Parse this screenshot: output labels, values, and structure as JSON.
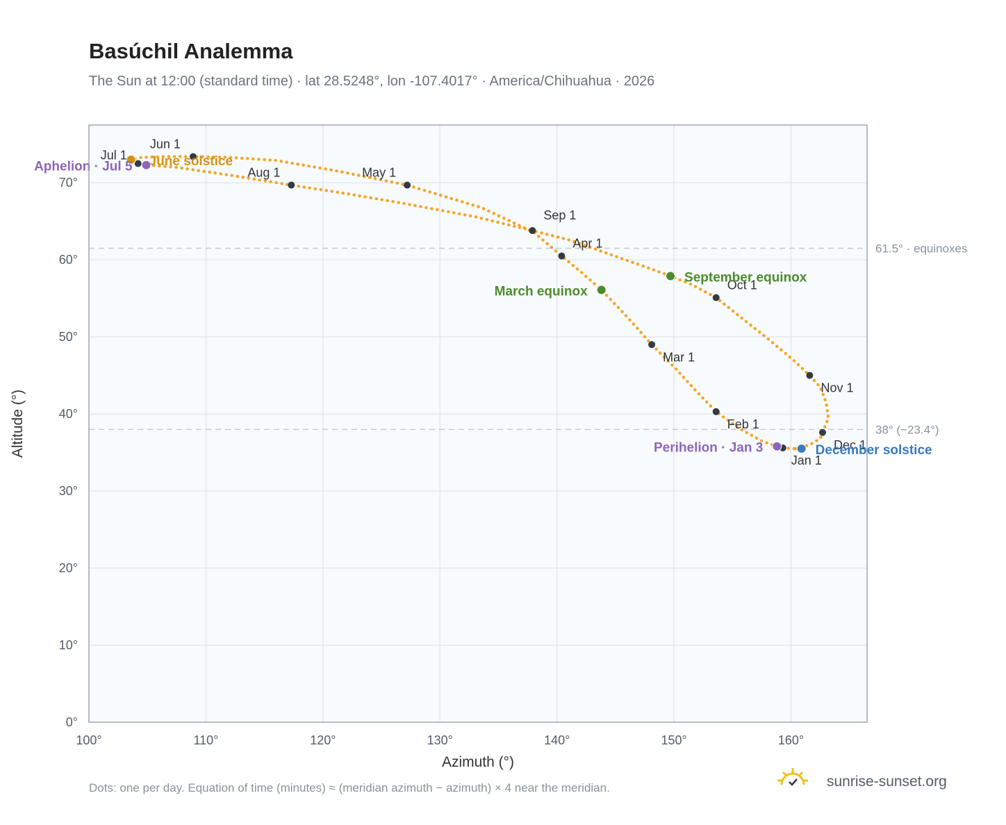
{
  "title": "Basúchil Analemma",
  "subtitle": "The Sun at 12:00 (standard time) · lat 28.5248°, lon -107.4017° · America/Chihuahua · 2026",
  "footnote": "Dots: one per day. Equation of time (minutes) ≈ (meridian azimuth − azimuth) × 4 near the meridian.",
  "brand": "sunrise-sunset.org",
  "colors": {
    "curve": "#f4a52a",
    "month_marker": "#333a44",
    "equinox": "#4e8a2e",
    "solstice_june": "#d39311",
    "solstice_december": "#3a7abf",
    "apsis": "#8c66b8",
    "plot_bg": "#f8fbfe",
    "grid": "#e3e8ee",
    "frame": "#9aa6b4",
    "ref_line": "#c4cad2",
    "logo": "#f0c020"
  },
  "chart_data": {
    "type": "scatter",
    "xlabel": "Azimuth (°)",
    "ylabel": "Altitude (°)",
    "xlim": [
      100,
      166.5
    ],
    "ylim": [
      0,
      77.5
    ],
    "x_ticks": [
      {
        "value": 100,
        "label": "100°"
      },
      {
        "value": 110,
        "label": "110°"
      },
      {
        "value": 120,
        "label": "120°"
      },
      {
        "value": 130,
        "label": "130°"
      },
      {
        "value": 140,
        "label": "140°"
      },
      {
        "value": 150,
        "label": "150°"
      },
      {
        "value": 160,
        "label": "160°"
      }
    ],
    "y_ticks": [
      {
        "value": 0,
        "label": "0°"
      },
      {
        "value": 10,
        "label": "10°"
      },
      {
        "value": 20,
        "label": "20°"
      },
      {
        "value": 30,
        "label": "30°"
      },
      {
        "value": 40,
        "label": "40°"
      },
      {
        "value": 50,
        "label": "50°"
      },
      {
        "value": 60,
        "label": "60°"
      },
      {
        "value": 70,
        "label": "70°"
      }
    ],
    "grid": true,
    "reference_lines": [
      {
        "y": 61.5,
        "label": "61.5° · equinoxes"
      },
      {
        "y": 38,
        "label": "38° (−23.4°)"
      }
    ],
    "daily_path": [
      {
        "x": 160.4,
        "y": 35.5
      },
      {
        "x": 161.6,
        "y": 36.0
      },
      {
        "x": 162.5,
        "y": 36.8
      },
      {
        "x": 162.7,
        "y": 37.6
      },
      {
        "x": 163.2,
        "y": 39.5
      },
      {
        "x": 163.0,
        "y": 41.5
      },
      {
        "x": 162.5,
        "y": 43.5
      },
      {
        "x": 161.6,
        "y": 45.0
      },
      {
        "x": 160.2,
        "y": 47.0
      },
      {
        "x": 158.0,
        "y": 49.8
      },
      {
        "x": 155.5,
        "y": 52.8
      },
      {
        "x": 153.6,
        "y": 55.1
      },
      {
        "x": 151.5,
        "y": 56.8
      },
      {
        "x": 149.7,
        "y": 57.9
      },
      {
        "x": 147.0,
        "y": 59.4
      },
      {
        "x": 144.0,
        "y": 61.0
      },
      {
        "x": 141.0,
        "y": 62.6
      },
      {
        "x": 137.9,
        "y": 63.8
      },
      {
        "x": 133.0,
        "y": 65.6
      },
      {
        "x": 127.0,
        "y": 67.3
      },
      {
        "x": 122.0,
        "y": 68.6
      },
      {
        "x": 117.3,
        "y": 69.7
      },
      {
        "x": 112.0,
        "y": 71.0
      },
      {
        "x": 107.5,
        "y": 72.0
      },
      {
        "x": 104.9,
        "y": 72.3
      },
      {
        "x": 104.2,
        "y": 72.5
      },
      {
        "x": 103.6,
        "y": 73.0
      },
      {
        "x": 104.5,
        "y": 73.3
      },
      {
        "x": 106.5,
        "y": 73.4
      },
      {
        "x": 108.9,
        "y": 73.4
      },
      {
        "x": 112.0,
        "y": 73.3
      },
      {
        "x": 116.0,
        "y": 72.9
      },
      {
        "x": 121.0,
        "y": 71.6
      },
      {
        "x": 127.2,
        "y": 69.7
      },
      {
        "x": 133.5,
        "y": 66.8
      },
      {
        "x": 138.0,
        "y": 63.6
      },
      {
        "x": 140.4,
        "y": 60.5
      },
      {
        "x": 142.0,
        "y": 58.5
      },
      {
        "x": 143.8,
        "y": 56.1
      },
      {
        "x": 146.0,
        "y": 52.6
      },
      {
        "x": 148.1,
        "y": 49.0
      },
      {
        "x": 150.2,
        "y": 45.8
      },
      {
        "x": 152.0,
        "y": 42.8
      },
      {
        "x": 153.6,
        "y": 40.3
      },
      {
        "x": 155.5,
        "y": 38.2
      },
      {
        "x": 157.5,
        "y": 36.5
      },
      {
        "x": 158.8,
        "y": 35.8
      },
      {
        "x": 159.3,
        "y": 35.6
      },
      {
        "x": 160.4,
        "y": 35.5
      }
    ],
    "month_markers": [
      {
        "label": "Jan 1",
        "x": 159.3,
        "y": 35.6
      },
      {
        "label": "Feb 1",
        "x": 153.6,
        "y": 40.3
      },
      {
        "label": "Mar 1",
        "x": 148.1,
        "y": 49.0
      },
      {
        "label": "Apr 1",
        "x": 140.4,
        "y": 60.5
      },
      {
        "label": "May 1",
        "x": 127.2,
        "y": 69.7
      },
      {
        "label": "Jun 1",
        "x": 108.9,
        "y": 73.4
      },
      {
        "label": "Jul 1",
        "x": 104.2,
        "y": 72.5
      },
      {
        "label": "Aug 1",
        "x": 117.3,
        "y": 69.7
      },
      {
        "label": "Sep 1",
        "x": 137.9,
        "y": 63.8
      },
      {
        "label": "Oct 1",
        "x": 153.6,
        "y": 55.1
      },
      {
        "label": "Nov 1",
        "x": 161.6,
        "y": 45.0
      },
      {
        "label": "Dec 1",
        "x": 162.7,
        "y": 37.6
      }
    ],
    "events": [
      {
        "label": "March equinox",
        "x": 143.8,
        "y": 56.1,
        "color_key": "equinox"
      },
      {
        "label": "September equinox",
        "x": 149.7,
        "y": 57.9,
        "color_key": "equinox"
      },
      {
        "label": "June solstice",
        "x": 103.6,
        "y": 73.0,
        "color_key": "solstice_june"
      },
      {
        "label": "December solstice",
        "x": 160.9,
        "y": 35.5,
        "color_key": "solstice_december"
      },
      {
        "label": "Perihelion · Jan 3",
        "x": 158.8,
        "y": 35.8,
        "color_key": "apsis"
      },
      {
        "label": "Aphelion · Jul 5",
        "x": 104.9,
        "y": 72.3,
        "color_key": "apsis"
      }
    ]
  }
}
